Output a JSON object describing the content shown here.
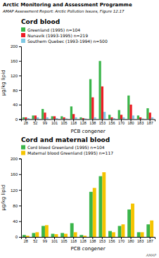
{
  "title": "Arctic Monitoring and Assessment Programme",
  "subtitle": "AMAP Assessment Report: Arctic Pollution Issues, Figure 12.17",
  "annotations": [
    "AMAP"
  ],
  "chart_data": [
    {
      "type": "bar",
      "title": "Cord blood",
      "categories": [
        "28",
        "52",
        "99",
        "101",
        "105",
        "118",
        "128",
        "138",
        "153",
        "156",
        "170",
        "180",
        "183",
        "187"
      ],
      "xlabel": "PCB congener",
      "ylabel": "µg/kg lipid",
      "ylim": [
        0,
        200
      ],
      "yticks": [
        0,
        40,
        80,
        120,
        160,
        200
      ],
      "grid": false,
      "legend": "top-left",
      "series": [
        {
          "name": "Greenland (1995) n=104",
          "color": "#3ab54a",
          "values": [
            5,
            10,
            28,
            8,
            8,
            35,
            5,
            110,
            160,
            12,
            25,
            65,
            10,
            30
          ]
        },
        {
          "name": "Nunavik (1993-1995) n=219",
          "color": "#ed1c24",
          "values": [
            5,
            10,
            18,
            8,
            5,
            14,
            3,
            60,
            90,
            5,
            12,
            40,
            5,
            18
          ]
        },
        {
          "name": "Southern Quebec (1993-1994) n=500",
          "color": "#7ec8e3",
          "values": [
            3,
            5,
            5,
            3,
            2,
            5,
            2,
            5,
            20,
            3,
            5,
            10,
            2,
            5
          ]
        }
      ]
    },
    {
      "type": "bar",
      "title": "Cord and maternal blood",
      "categories": [
        "28",
        "52",
        "99",
        "101",
        "105",
        "118",
        "128",
        "138",
        "153",
        "156",
        "170",
        "180",
        "183",
        "187"
      ],
      "xlabel": "PCB congener",
      "ylabel": "µg/kg lipid",
      "ylim": [
        0,
        200
      ],
      "yticks": [
        0,
        40,
        80,
        120,
        160,
        200
      ],
      "grid": false,
      "legend": "top-left",
      "series": [
        {
          "name": "Cord blood Greenland (1995) n=104",
          "color": "#3ab54a",
          "values": [
            5,
            10,
            28,
            8,
            10,
            35,
            5,
            115,
            155,
            15,
            28,
            70,
            12,
            32
          ]
        },
        {
          "name": "Maternal blood Greenland (1995) n=117",
          "color": "#f5c400",
          "values": [
            3,
            12,
            30,
            7,
            8,
            12,
            3,
            125,
            165,
            12,
            32,
            85,
            12,
            42
          ]
        }
      ]
    }
  ]
}
